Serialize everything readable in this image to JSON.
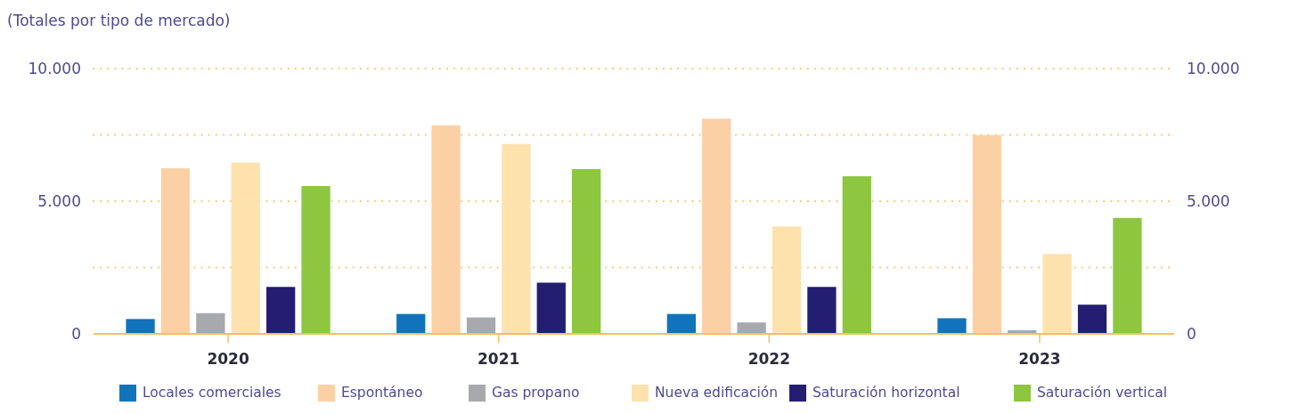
{
  "chart_data": {
    "type": "bar",
    "title": "(Totales por tipo de mercado)",
    "categories": [
      "2020",
      "2021",
      "2022",
      "2023"
    ],
    "series": [
      {
        "name": "Locales comerciales",
        "color": "#1174bb",
        "values": [
          560,
          750,
          750,
          590
        ]
      },
      {
        "name": "Espontáneo",
        "color": "#fbd0a5",
        "values": [
          6240,
          7860,
          8110,
          7490
        ]
      },
      {
        "name": "Gas propano",
        "color": "#a8a9ad",
        "values": [
          780,
          620,
          430,
          140
        ]
      },
      {
        "name": "Nueva edificación",
        "color": "#fde2ae",
        "values": [
          6460,
          7160,
          4050,
          3010
        ]
      },
      {
        "name": "Saturación horizontal",
        "color": "#231e72",
        "values": [
          1770,
          1930,
          1770,
          1100
        ]
      },
      {
        "name": "Saturación vertical",
        "color": "#8dc63f",
        "values": [
          5570,
          6210,
          5940,
          4370
        ]
      }
    ],
    "ylim": [
      0,
      10000
    ],
    "yticks": [
      0,
      {
        "value": 2500,
        "label": null
      },
      {
        "value": 5000,
        "label": "5.000"
      },
      {
        "value": 7500,
        "label": null
      },
      {
        "value": 10000,
        "label": "10.000"
      }
    ],
    "y2lim": [
      0,
      10000
    ],
    "y2ticks": [
      0,
      {
        "value": 5000,
        "label": "5.000"
      },
      {
        "value": 10000,
        "label": "10.000"
      }
    ],
    "grid": "y",
    "legend": "bottom"
  }
}
